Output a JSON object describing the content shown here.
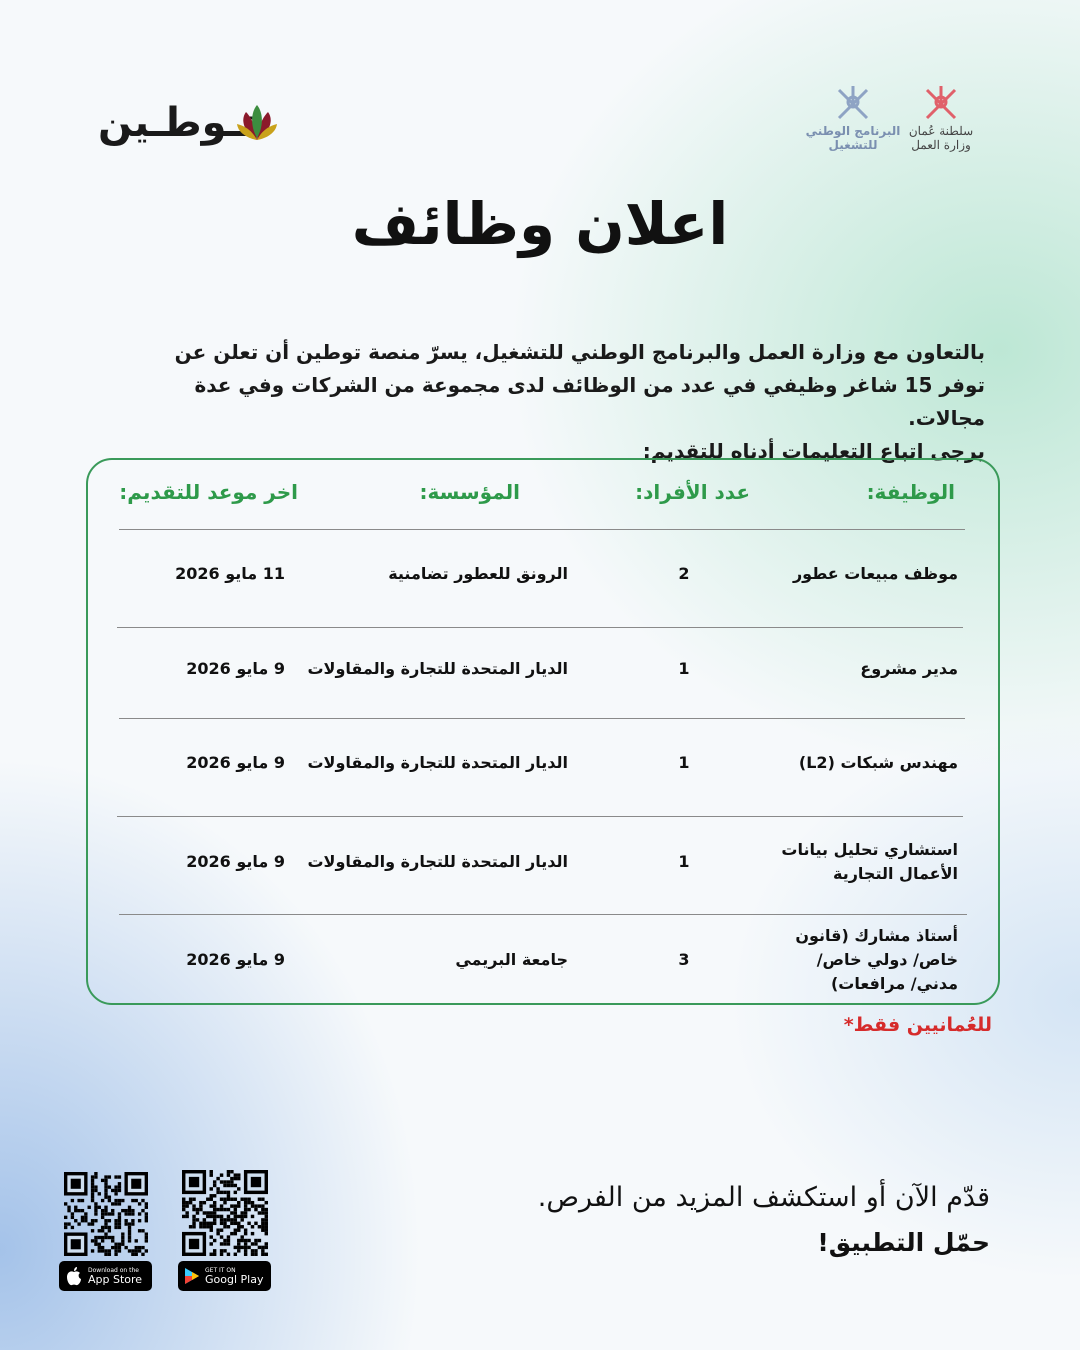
{
  "brand": {
    "logo_text": "تـوطـين",
    "colors": {
      "green": "#2e9a4a",
      "red": "#d62b2b",
      "border": "#3a9a5a"
    }
  },
  "partners": [
    {
      "name": "البرنامج الوطني للتشغيل",
      "color": "#7a8fb0"
    },
    {
      "name": "سلطنة عُمان وزارة العمل",
      "color": "#444444"
    }
  ],
  "title": "اعلان وظائف",
  "intro": [
    "بالتعاون مع وزارة العمل والبرنامج الوطني للتشغيل، يسرّ منصة توطين أن تعلن عن توفر 15 شاغر وظيفي في عدد من الوظائف لدى مجموعة من الشركات وفي عدة مجالات.",
    "يرجى اتباع التعليمات أدناه للتقديم:"
  ],
  "table": {
    "headers": {
      "job": "الوظيفة:",
      "count": "عدد الأفراد:",
      "org": "المؤسسة:",
      "deadline": "اخر موعد للتقديم:"
    },
    "rows": [
      {
        "job": "موظف مبيعات عطور",
        "count": "2",
        "org": "الرونق للعطور تضامنية",
        "deadline": "11 مايو 2026"
      },
      {
        "job": "مدير مشروع",
        "count": "1",
        "org": "الديار المتحدة للتجارة والمقاولات",
        "deadline": "9 مايو 2026"
      },
      {
        "job": "مهندس شبكات (L2)",
        "count": "1",
        "org": "الديار المتحدة للتجارة والمقاولات",
        "deadline": "9 مايو 2026"
      },
      {
        "job": "استشاري تحليل بيانات الأعمال التجارية",
        "count": "1",
        "org": "الديار المتحدة للتجارة والمقاولات",
        "deadline": "9 مايو 2026"
      },
      {
        "job": "أستاذ مشارك (قانون خاص/ دولي خاص/ مدني/ مرافعات)",
        "count": "3",
        "org": "جامعة البريمي",
        "deadline": "9 مايو 2026"
      }
    ]
  },
  "note": "للعُمانيين فقط*",
  "cta": {
    "line1": "قدّم الآن أو استكشف المزيد من الفرص.",
    "line2": "حمّل التطبيق!"
  },
  "stores": {
    "apple": {
      "small": "Download on the",
      "big": "App Store"
    },
    "google": {
      "small": "GET IT ON",
      "big": "Googl  Play"
    }
  }
}
